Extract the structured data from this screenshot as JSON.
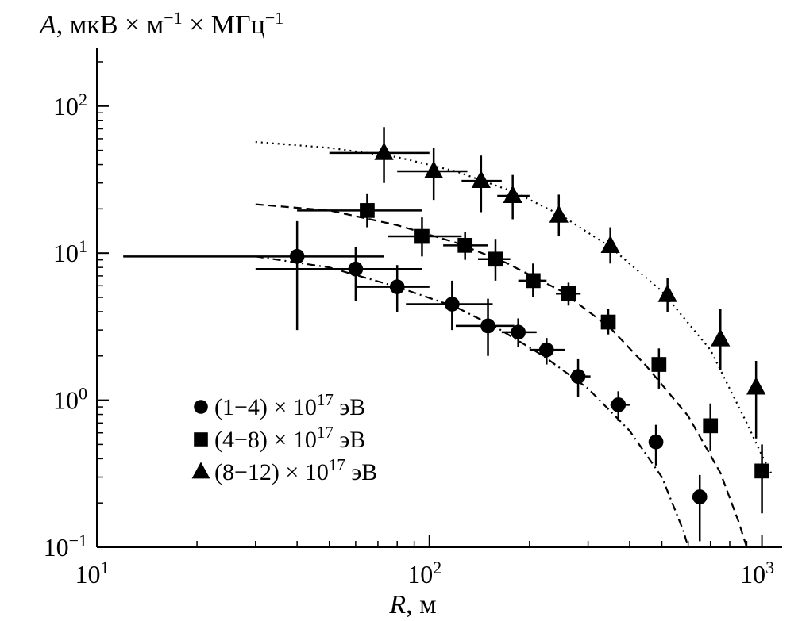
{
  "chart_data": {
    "type": "scatter",
    "title": "",
    "ylabel_var": "A",
    "ylabel_units": "мкВ × м",
    "ylabel_exp1": "−1",
    "ylabel_units2": " × МГц",
    "ylabel_exp2": "−1",
    "xlabel_var": "R",
    "xlabel_units": ", м",
    "xscale": "log",
    "yscale": "log",
    "xlim": [
      10,
      1150
    ],
    "ylim": [
      0.1,
      250
    ],
    "x_ticks": [
      {
        "base": "10",
        "exp": "1",
        "value": 10
      },
      {
        "base": "10",
        "exp": "2",
        "value": 100
      },
      {
        "base": "10",
        "exp": "3",
        "value": 1000
      }
    ],
    "y_ticks": [
      {
        "base": "10",
        "exp": "−1",
        "value": 0.1
      },
      {
        "base": "10",
        "exp": "0",
        "value": 1
      },
      {
        "base": "10",
        "exp": "1",
        "value": 10
      },
      {
        "base": "10",
        "exp": "2",
        "value": 100
      }
    ],
    "legend_position": "bottom-left",
    "series": [
      {
        "name_pre": "(1−4) × 10",
        "name_exp": "17",
        "name_post": " эВ",
        "marker": "circle",
        "curve_style": "dashdot",
        "points": [
          {
            "x": 40,
            "y": 9.5,
            "xerr": [
              12,
              73
            ],
            "yerr": [
              3.0,
              16.5
            ]
          },
          {
            "x": 60,
            "y": 7.8,
            "xerr": [
              30,
              95
            ],
            "yerr": [
              4.7,
              11.0
            ]
          },
          {
            "x": 80,
            "y": 5.9,
            "xerr": [
              60,
              100
            ],
            "yerr": [
              4.0,
              8.3
            ]
          },
          {
            "x": 117,
            "y": 4.5,
            "xerr": [
              85,
              155
            ],
            "yerr": [
              3.0,
              6.5
            ]
          },
          {
            "x": 150,
            "y": 3.2,
            "xerr": [
              120,
              180
            ],
            "yerr": [
              2.0,
              4.9
            ]
          },
          {
            "x": 185,
            "y": 2.9,
            "xerr": [
              165,
              210
            ],
            "yerr": [
              2.3,
              3.6
            ]
          },
          {
            "x": 225,
            "y": 2.2,
            "xerr": [
              200,
              255
            ],
            "yerr": [
              1.75,
              2.65
            ]
          },
          {
            "x": 280,
            "y": 1.45,
            "xerr": [
              265,
              305
            ],
            "yerr": [
              1.05,
              1.9
            ]
          },
          {
            "x": 370,
            "y": 0.93,
            "xerr": [
              350,
              400
            ],
            "yerr": [
              0.72,
              1.15
            ]
          },
          {
            "x": 480,
            "y": 0.52,
            "xerr": [
              470,
              490
            ],
            "yerr": [
              0.36,
              0.68
            ]
          },
          {
            "x": 650,
            "y": 0.22,
            "xerr": [
              640,
              660
            ],
            "yerr": [
              0.11,
              0.31
            ]
          }
        ],
        "curve": [
          [
            30,
            9.5
          ],
          [
            50,
            8.0
          ],
          [
            80,
            5.9
          ],
          [
            120,
            4.3
          ],
          [
            160,
            3.1
          ],
          [
            220,
            2.0
          ],
          [
            300,
            1.2
          ],
          [
            400,
            0.62
          ],
          [
            500,
            0.3
          ],
          [
            580,
            0.13
          ],
          [
            600,
            0.1
          ]
        ]
      },
      {
        "name_pre": "(4−8) × 10",
        "name_exp": "17",
        "name_post": " эВ",
        "marker": "square",
        "curve_style": "dashed",
        "points": [
          {
            "x": 65,
            "y": 19.5,
            "xerr": [
              40,
              95
            ],
            "yerr": [
              15.0,
              25.5
            ]
          },
          {
            "x": 95,
            "y": 13.0,
            "xerr": [
              75,
              125
            ],
            "yerr": [
              9.5,
              17.5
            ]
          },
          {
            "x": 128,
            "y": 11.3,
            "xerr": [
              110,
              150
            ],
            "yerr": [
              9.0,
              14.0
            ]
          },
          {
            "x": 158,
            "y": 9.1,
            "xerr": [
              140,
              175
            ],
            "yerr": [
              6.5,
              12.5
            ]
          },
          {
            "x": 205,
            "y": 6.5,
            "xerr": [
              185,
              225
            ],
            "yerr": [
              5.0,
              8.5
            ]
          },
          {
            "x": 262,
            "y": 5.3,
            "xerr": [
              240,
              285
            ],
            "yerr": [
              4.4,
              6.3
            ]
          },
          {
            "x": 345,
            "y": 3.4,
            "xerr": [
              330,
              360
            ],
            "yerr": [
              2.8,
              4.2
            ]
          },
          {
            "x": 490,
            "y": 1.75,
            "xerr": [
              480,
              500
            ],
            "yerr": [
              1.2,
              2.25
            ]
          },
          {
            "x": 700,
            "y": 0.67,
            "xerr": [
              690,
              710
            ],
            "yerr": [
              0.45,
              0.95
            ]
          },
          {
            "x": 1000,
            "y": 0.33,
            "xerr": [
              990,
              1010
            ],
            "yerr": [
              0.17,
              0.5
            ]
          }
        ],
        "curve": [
          [
            30,
            21.5
          ],
          [
            50,
            19.5
          ],
          [
            80,
            15.5
          ],
          [
            120,
            11.8
          ],
          [
            170,
            8.6
          ],
          [
            250,
            5.5
          ],
          [
            350,
            3.1
          ],
          [
            450,
            1.7
          ],
          [
            600,
            0.78
          ],
          [
            750,
            0.32
          ],
          [
            850,
            0.15
          ],
          [
            900,
            0.1
          ]
        ]
      },
      {
        "name_pre": "(8−12) × 10",
        "name_exp": "17",
        "name_post": " эВ",
        "marker": "triangle",
        "curve_style": "dotted",
        "points": [
          {
            "x": 73,
            "y": 48,
            "xerr": [
              50,
              100
            ],
            "yerr": [
              30,
              72
            ]
          },
          {
            "x": 103,
            "y": 36,
            "xerr": [
              80,
              130
            ],
            "yerr": [
              23,
              52
            ]
          },
          {
            "x": 143,
            "y": 31,
            "xerr": [
              125,
              165
            ],
            "yerr": [
              19,
              46
            ]
          },
          {
            "x": 178,
            "y": 24.5,
            "xerr": [
              160,
              200
            ],
            "yerr": [
              17,
              34
            ]
          },
          {
            "x": 245,
            "y": 18,
            "xerr": [
              235,
              255
            ],
            "yerr": [
              13,
              25
            ]
          },
          {
            "x": 350,
            "y": 11.2,
            "xerr": [
              340,
              360
            ],
            "yerr": [
              8.5,
              15
            ]
          },
          {
            "x": 520,
            "y": 5.2,
            "xerr": [
              510,
              530
            ],
            "yerr": [
              4.0,
              6.8
            ]
          },
          {
            "x": 750,
            "y": 2.6,
            "xerr": [
              740,
              760
            ],
            "yerr": [
              1.6,
              4.2
            ]
          },
          {
            "x": 960,
            "y": 1.22,
            "xerr": [
              950,
              970
            ],
            "yerr": [
              0.55,
              1.85
            ]
          }
        ],
        "curve": [
          [
            30,
            57
          ],
          [
            50,
            52
          ],
          [
            80,
            45
          ],
          [
            120,
            36
          ],
          [
            180,
            26
          ],
          [
            250,
            18
          ],
          [
            350,
            11
          ],
          [
            500,
            5.5
          ],
          [
            700,
            2.2
          ],
          [
            900,
            0.7
          ],
          [
            1000,
            0.42
          ],
          [
            1080,
            0.3
          ]
        ]
      }
    ]
  }
}
